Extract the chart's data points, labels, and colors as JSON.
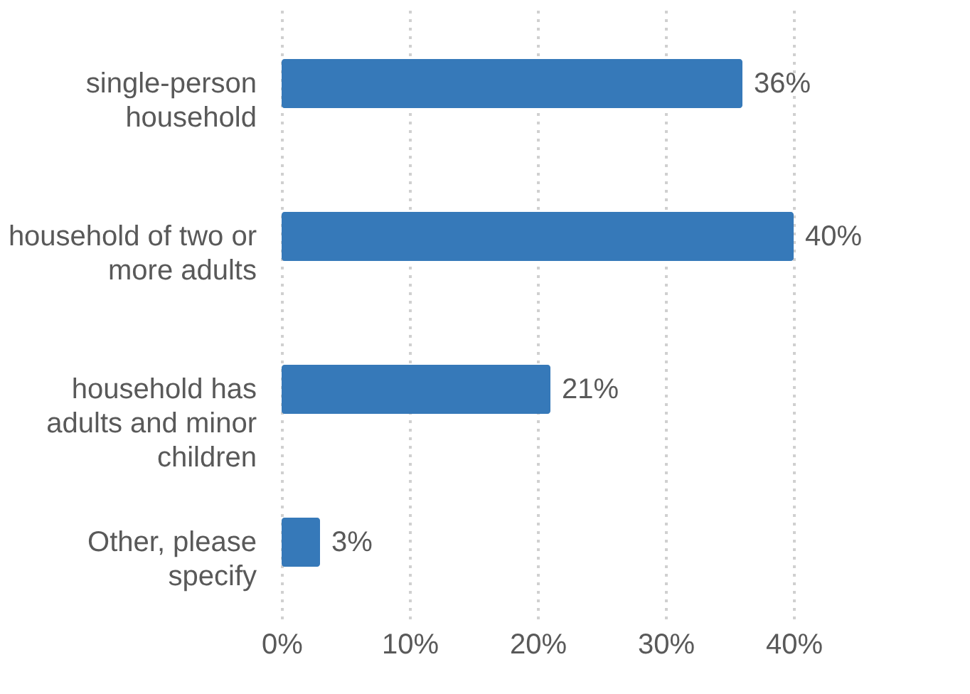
{
  "chart_data": {
    "type": "bar",
    "orientation": "horizontal",
    "categories": [
      "single-person household",
      "household of two or more adults",
      "household has adults and minor children",
      "Other, please specify"
    ],
    "values": [
      36,
      40,
      21,
      3
    ],
    "value_labels": [
      "36%",
      "40%",
      "21%",
      "3%"
    ],
    "color": "#3679b9",
    "xlim": [
      0,
      40
    ],
    "xticks": [
      {
        "value": 0,
        "label": "0%"
      },
      {
        "value": 10,
        "label": "10%"
      },
      {
        "value": 20,
        "label": "20%"
      },
      {
        "value": 30,
        "label": "30%"
      },
      {
        "value": 40,
        "label": "40%"
      }
    ],
    "grid": "x"
  }
}
